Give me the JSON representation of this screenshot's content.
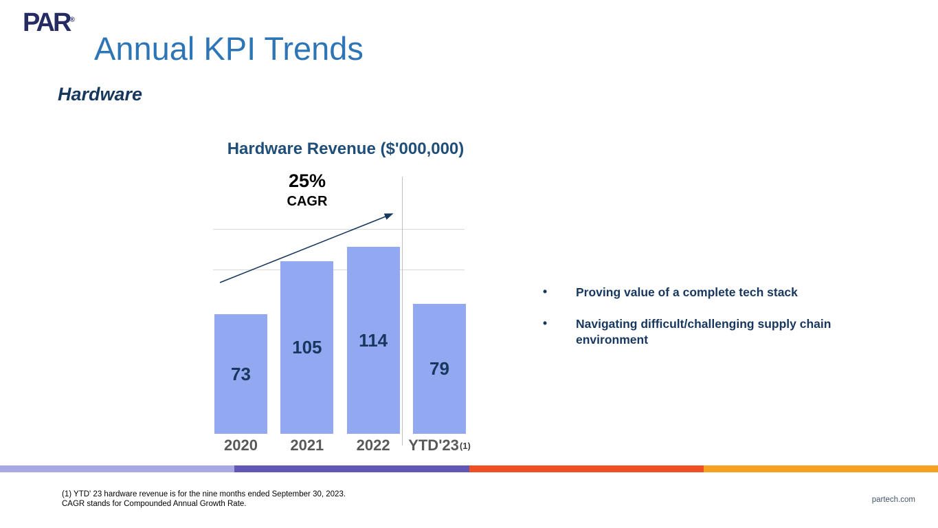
{
  "slide": {
    "logo_text": "PAR",
    "logo_reg": "®",
    "title": "Annual KPI Trends",
    "subtitle": "Hardware",
    "footnotes": [
      "(1) YTD' 23 hardware revenue is for the nine months ended September 30, 2023.",
      "CAGR stands for Compounded Annual Growth Rate."
    ],
    "website": "partech.com"
  },
  "chart_data": {
    "type": "bar",
    "title": "Hardware Revenue ($'000,000)",
    "categories": [
      "2020",
      "2021",
      "2022",
      "YTD'23"
    ],
    "values": [
      73,
      105,
      114,
      79
    ],
    "xlabel": "",
    "ylabel": "",
    "ylim": [
      0,
      160
    ],
    "gridlines": [
      100,
      125
    ],
    "grid": true,
    "legend_position": "none",
    "annotation": {
      "value": "25%",
      "label": "CAGR"
    },
    "footnote_marker": "(1)",
    "footnote_marker_index": 3,
    "separator_after_index": 2
  },
  "bullets": [
    "Proving value of a complete tech stack",
    "Navigating difficult/challenging supply chain environment"
  ],
  "colors": {
    "title_blue": "#2e75b6",
    "navy": "#17375e",
    "chart_title": "#1f4e79",
    "axis_label": "#595959",
    "bar_fill": "#92a8f0",
    "gridline": "#d9d9d9",
    "separator": "#bfbfbf",
    "stripe": [
      "#a8a8e2",
      "#6157b4",
      "#f04f23",
      "#f6a021"
    ]
  }
}
